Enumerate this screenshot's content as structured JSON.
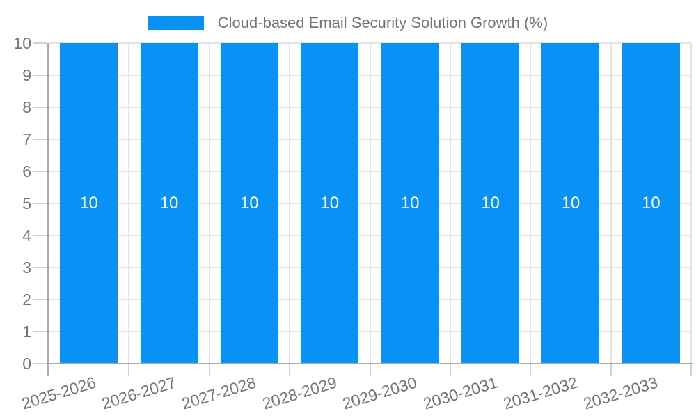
{
  "legend": {
    "series_label": "Cloud-based Email Security Solution Growth (%)",
    "swatch_color": "#0992f5"
  },
  "chart_data": {
    "type": "bar",
    "title": "Cloud-based Email Security Solution Growth (%)",
    "categories": [
      "2025-2026",
      "2026-2027",
      "2027-2028",
      "2028-2029",
      "2029-2030",
      "2030-2031",
      "2031-2032",
      "2032-2033"
    ],
    "series": [
      {
        "name": "Cloud-based Email Security Solution Growth (%)",
        "color": "#0992f5",
        "values": [
          10,
          10,
          10,
          10,
          10,
          10,
          10,
          10
        ],
        "data_labels": [
          "10",
          "10",
          "10",
          "10",
          "10",
          "10",
          "10",
          "10"
        ]
      }
    ],
    "xlabel": "",
    "ylabel": "",
    "ylim": [
      0,
      10
    ],
    "y_ticks": [
      0,
      1,
      2,
      3,
      4,
      5,
      6,
      7,
      8,
      9,
      10
    ],
    "grid": true,
    "legend_position": "top",
    "bar_label_color": "#ffffff",
    "x_label_rotation_deg": -17,
    "colors": {
      "axis_text": "#757575",
      "grid_line": "#e3e3e3",
      "tick_mark": "#d2d2d2",
      "axis_line": "#aaaaaa",
      "background": "#ffffff"
    }
  }
}
